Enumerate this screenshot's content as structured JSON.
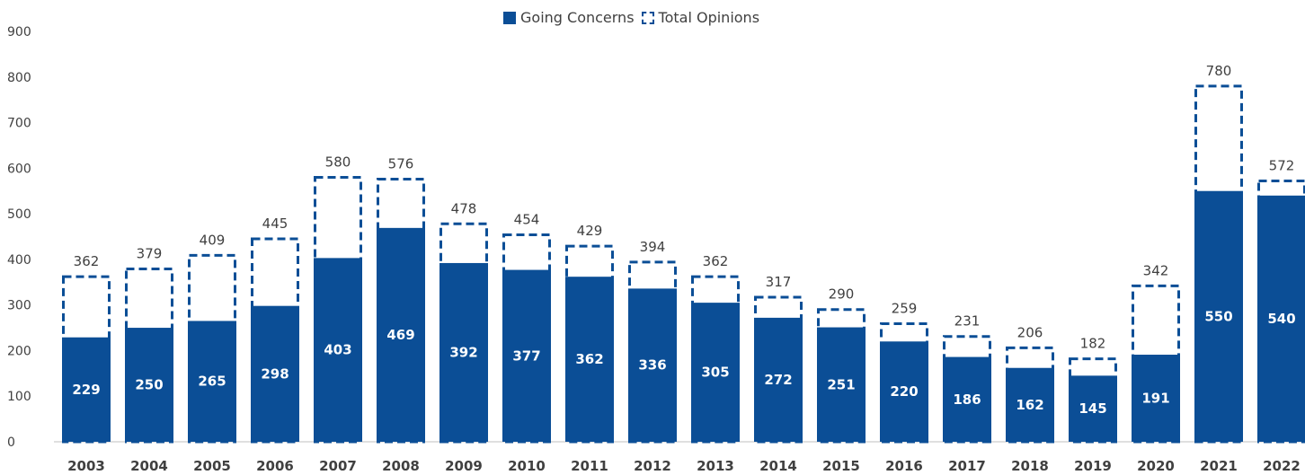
{
  "chart_data": {
    "type": "bar",
    "categories": [
      "2003",
      "2004",
      "2005",
      "2006",
      "2007",
      "2008",
      "2009",
      "2010",
      "2011",
      "2012",
      "2013",
      "2014",
      "2015",
      "2016",
      "2017",
      "2018",
      "2019",
      "2020",
      "2021",
      "2022"
    ],
    "series": [
      {
        "name": "Going Concerns",
        "values": [
          229,
          250,
          265,
          298,
          403,
          469,
          392,
          377,
          362,
          336,
          305,
          272,
          251,
          220,
          186,
          162,
          145,
          191,
          550,
          540
        ],
        "style": "solid"
      },
      {
        "name": "Total Opinions",
        "values": [
          362,
          379,
          409,
          445,
          580,
          576,
          478,
          454,
          429,
          394,
          362,
          317,
          290,
          259,
          231,
          206,
          182,
          342,
          780,
          572
        ],
        "style": "dashed-outline"
      }
    ],
    "title": "",
    "xlabel": "",
    "ylabel": "",
    "ylim": [
      0,
      900
    ],
    "yticks": [
      0,
      100,
      200,
      300,
      400,
      500,
      600,
      700,
      800,
      900
    ],
    "grid": false,
    "legend_position": "top-center",
    "colors": {
      "bar": "#0b4e96",
      "text": "#404040",
      "bar_label": "#ffffff"
    }
  }
}
